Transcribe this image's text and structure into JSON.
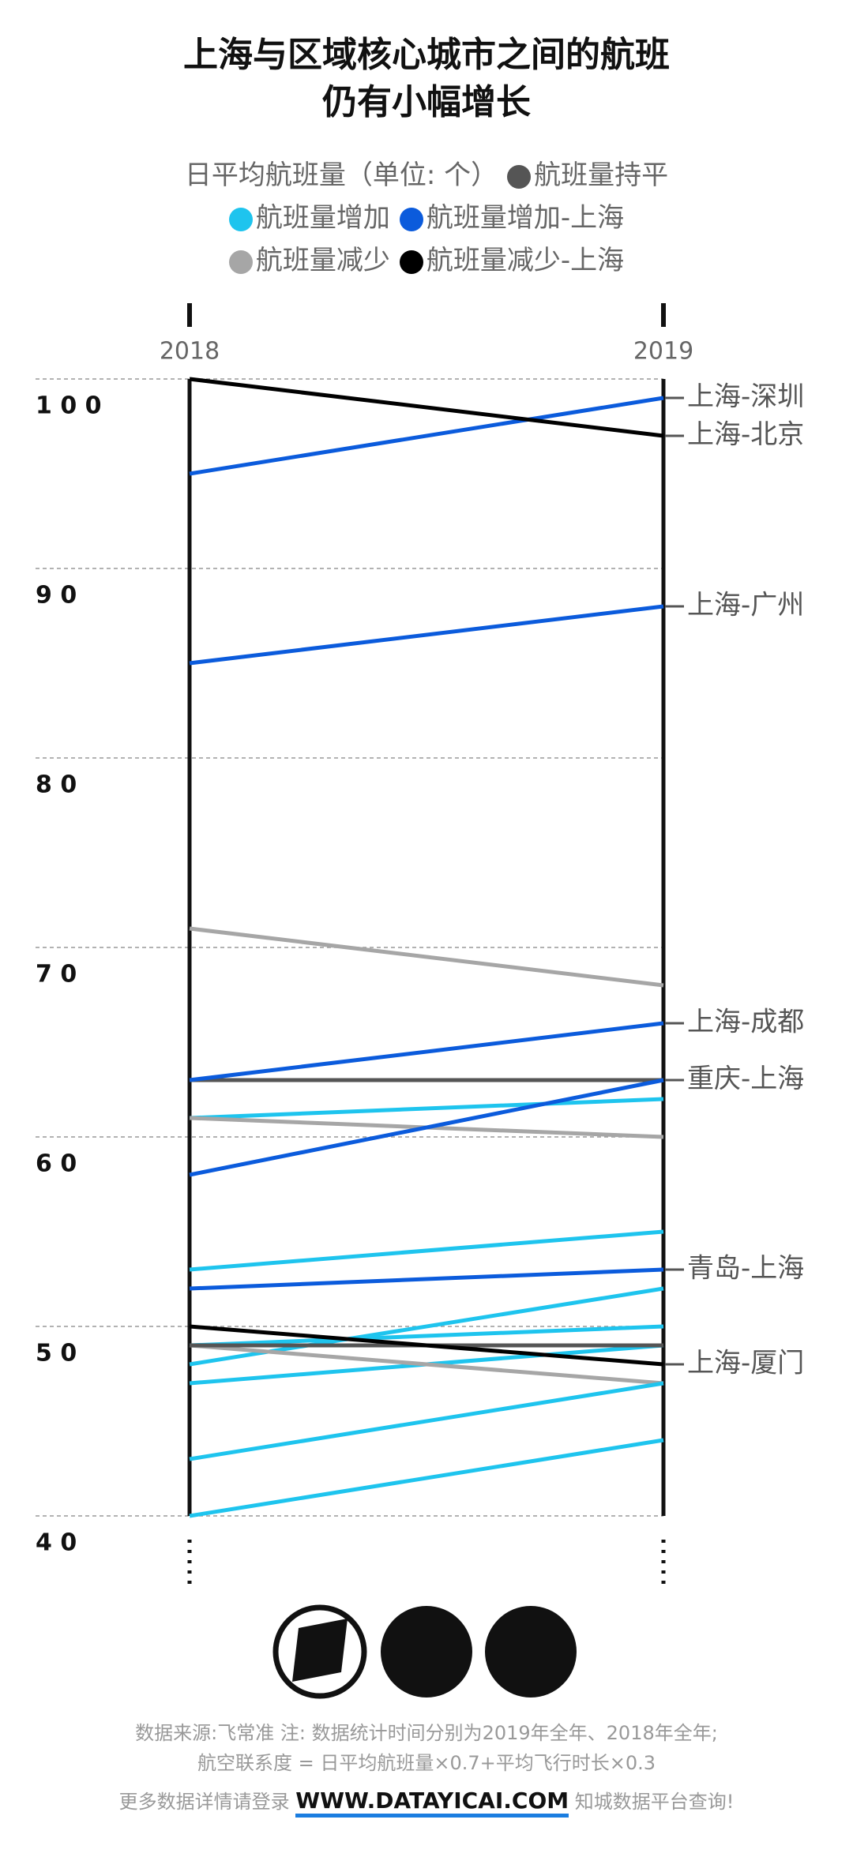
{
  "chart_data": {
    "type": "slope",
    "title": [
      "上海与区域核心城市之间的航班",
      "仍有小幅增长"
    ],
    "legend_title": "日平均航班量（单位: 个）",
    "legend": [
      {
        "name": "航班量持平",
        "color": "#555555"
      },
      {
        "name": "航班量增加",
        "color": "#1ec4ee"
      },
      {
        "name": "航班量增加-上海",
        "color": "#0b5bdc"
      },
      {
        "name": "航班量减少",
        "color": "#a6a6a6"
      },
      {
        "name": "航班量减少-上海",
        "color": "#000000"
      }
    ],
    "categories": [
      "2018",
      "2019"
    ],
    "ylim": [
      40,
      100
    ],
    "yticks": [
      {
        "value": 40,
        "label": "4 0"
      },
      {
        "value": 50,
        "label": "5 0"
      },
      {
        "value": 60,
        "label": "6 0"
      },
      {
        "value": 70,
        "label": "7 0"
      },
      {
        "value": 80,
        "label": "8 0"
      },
      {
        "value": 90,
        "label": "9 0"
      },
      {
        "value": 100,
        "label": "1 0 0"
      }
    ],
    "grid": true,
    "series": [
      {
        "color": "#a6a6a6",
        "values": [
          71,
          68
        ]
      },
      {
        "color": "#1ec4ee",
        "values": [
          61,
          62
        ]
      },
      {
        "color": "#a6a6a6",
        "values": [
          61,
          60
        ]
      },
      {
        "color": "#1ec4ee",
        "values": [
          53,
          55
        ]
      },
      {
        "color": "#1ec4ee",
        "values": [
          48,
          52
        ]
      },
      {
        "color": "#1ec4ee",
        "values": [
          49,
          50
        ]
      },
      {
        "color": "#1ec4ee",
        "values": [
          47,
          49
        ]
      },
      {
        "color": "#a6a6a6",
        "values": [
          49,
          47
        ]
      },
      {
        "color": "#1ec4ee",
        "values": [
          43,
          47
        ]
      },
      {
        "color": "#1ec4ee",
        "values": [
          40,
          44
        ]
      },
      {
        "color": "#555555",
        "values": [
          49,
          49
        ]
      },
      {
        "color": "#555555",
        "values": [
          63,
          63
        ]
      },
      {
        "name": "上海-深圳",
        "color": "#0b5bdc",
        "values": [
          95,
          99
        ]
      },
      {
        "name": "上海-广州",
        "color": "#0b5bdc",
        "values": [
          85,
          88
        ]
      },
      {
        "name": "上海-成都",
        "color": "#0b5bdc",
        "values": [
          63,
          66
        ]
      },
      {
        "name": "重庆-上海",
        "color": "#0b5bdc",
        "values": [
          58,
          63
        ]
      },
      {
        "name": "青岛-上海",
        "color": "#0b5bdc",
        "values": [
          52,
          53
        ]
      },
      {
        "name": "上海-北京",
        "color": "#000000",
        "values": [
          100,
          97
        ]
      },
      {
        "name": "上海-厦门",
        "color": "#000000",
        "values": [
          50,
          48
        ]
      }
    ]
  },
  "footer": {
    "source": "数据来源:飞常准  注: 数据统计时间分别为2019年全年、2018年全年;",
    "formula": "航空联系度 = 日平均航班量×0.7+平均飞行时长×0.3",
    "more_prefix": "更多数据详情请登录",
    "url": "WWW.DATAYICAI.COM",
    "more_suffix": "知城数据平台查询!"
  }
}
